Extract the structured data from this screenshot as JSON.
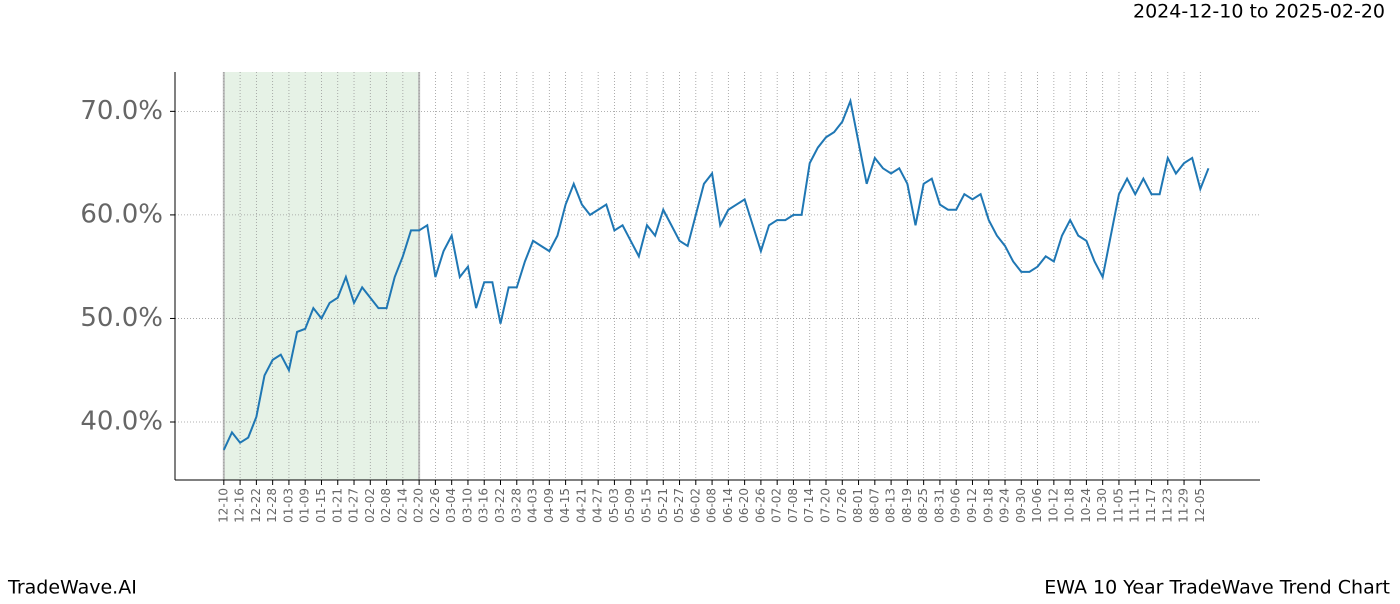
{
  "header": "2024-12-10 to 2025-02-20",
  "footer_left": "TradeWave.AI",
  "footer_right": "EWA 10 Year TradeWave Trend Chart",
  "chart_data": {
    "type": "line",
    "x": [
      0,
      3,
      6,
      9,
      12,
      15,
      18,
      21,
      24,
      27,
      30,
      33,
      36,
      39,
      42,
      45,
      48,
      51,
      54,
      57,
      60,
      63,
      66,
      69,
      72,
      75,
      78,
      81,
      84,
      87,
      90,
      93,
      96,
      99,
      102,
      105,
      108,
      111,
      114,
      117,
      120,
      123,
      126,
      129,
      132,
      135,
      138,
      141,
      144,
      147,
      150,
      153,
      156,
      159,
      162,
      165,
      168,
      171,
      174,
      177,
      180,
      183,
      186,
      189,
      192,
      195,
      198,
      201,
      204,
      207,
      210,
      213,
      216,
      219,
      222,
      225,
      228,
      231,
      234,
      237,
      240,
      243,
      246,
      249,
      252,
      255,
      258,
      261,
      264,
      267,
      270,
      273,
      276,
      279,
      282,
      285,
      288,
      291,
      294,
      297,
      300,
      303,
      306,
      309,
      312,
      315,
      318,
      321,
      324,
      327,
      330,
      333,
      336,
      339,
      342,
      345,
      348,
      351,
      354,
      357,
      360,
      363
    ],
    "series": [
      {
        "color": "#1f77b4",
        "values": [
          37.3,
          39,
          38,
          38.5,
          40.5,
          44.5,
          46,
          46.5,
          45,
          48.7,
          49,
          51,
          50,
          51.5,
          52,
          54,
          51.5,
          53,
          52,
          51,
          51,
          54,
          56,
          58.5,
          58.5,
          59,
          54,
          56.5,
          58,
          54,
          55,
          51,
          53.5,
          53.5,
          49.5,
          53,
          53,
          55.5,
          57.5,
          57,
          56.5,
          58,
          61,
          63,
          61,
          60,
          60.5,
          61,
          58.5,
          59,
          57.5,
          56,
          59,
          58,
          60.5,
          59,
          57.5,
          57,
          60,
          63,
          64,
          59,
          60.5,
          61,
          61.5,
          59,
          56.5,
          59,
          59.5,
          59.5,
          60,
          60,
          65,
          66.5,
          67.5,
          68,
          69,
          71,
          67,
          63,
          65.5,
          64.5,
          64,
          64.5,
          63,
          59,
          63,
          63.5,
          61,
          60.5,
          60.5,
          62,
          61.5,
          62,
          59.5,
          58,
          57,
          55.5,
          54.5,
          54.5,
          55,
          56,
          55.5,
          58,
          59.5,
          58,
          57.5,
          55.5,
          54,
          58,
          62,
          63.5,
          62,
          63.5,
          62,
          62,
          65.5,
          64,
          65,
          65.5,
          62.5,
          64.5
        ]
      }
    ],
    "shade": {
      "from": 0,
      "to": 72,
      "color": "#e6f2e6"
    },
    "xlim": [
      -18,
      382
    ],
    "xticks": [
      {
        "value": 0,
        "label": "12-10"
      },
      {
        "value": 6,
        "label": "12-16"
      },
      {
        "value": 12,
        "label": "12-22"
      },
      {
        "value": 18,
        "label": "12-28"
      },
      {
        "value": 24,
        "label": "01-03"
      },
      {
        "value": 30,
        "label": "01-09"
      },
      {
        "value": 36,
        "label": "01-15"
      },
      {
        "value": 42,
        "label": "01-21"
      },
      {
        "value": 48,
        "label": "01-27"
      },
      {
        "value": 54,
        "label": "02-02"
      },
      {
        "value": 60,
        "label": "02-08"
      },
      {
        "value": 66,
        "label": "02-14"
      },
      {
        "value": 72,
        "label": "02-20"
      },
      {
        "value": 78,
        "label": "02-26"
      },
      {
        "value": 84,
        "label": "03-04"
      },
      {
        "value": 90,
        "label": "03-10"
      },
      {
        "value": 96,
        "label": "03-16"
      },
      {
        "value": 102,
        "label": "03-22"
      },
      {
        "value": 108,
        "label": "03-28"
      },
      {
        "value": 114,
        "label": "04-03"
      },
      {
        "value": 120,
        "label": "04-09"
      },
      {
        "value": 126,
        "label": "04-15"
      },
      {
        "value": 132,
        "label": "04-21"
      },
      {
        "value": 138,
        "label": "04-27"
      },
      {
        "value": 144,
        "label": "05-03"
      },
      {
        "value": 150,
        "label": "05-09"
      },
      {
        "value": 156,
        "label": "05-15"
      },
      {
        "value": 162,
        "label": "05-21"
      },
      {
        "value": 168,
        "label": "05-27"
      },
      {
        "value": 174,
        "label": "06-02"
      },
      {
        "value": 180,
        "label": "06-08"
      },
      {
        "value": 186,
        "label": "06-14"
      },
      {
        "value": 192,
        "label": "06-20"
      },
      {
        "value": 198,
        "label": "06-26"
      },
      {
        "value": 204,
        "label": "07-02"
      },
      {
        "value": 210,
        "label": "07-08"
      },
      {
        "value": 216,
        "label": "07-14"
      },
      {
        "value": 222,
        "label": "07-20"
      },
      {
        "value": 228,
        "label": "07-26"
      },
      {
        "value": 234,
        "label": "08-01"
      },
      {
        "value": 240,
        "label": "08-07"
      },
      {
        "value": 246,
        "label": "08-13"
      },
      {
        "value": 252,
        "label": "08-19"
      },
      {
        "value": 258,
        "label": "08-25"
      },
      {
        "value": 264,
        "label": "08-31"
      },
      {
        "value": 270,
        "label": "09-06"
      },
      {
        "value": 276,
        "label": "09-12"
      },
      {
        "value": 282,
        "label": "09-18"
      },
      {
        "value": 288,
        "label": "09-24"
      },
      {
        "value": 294,
        "label": "09-30"
      },
      {
        "value": 300,
        "label": "10-06"
      },
      {
        "value": 306,
        "label": "10-12"
      },
      {
        "value": 312,
        "label": "10-18"
      },
      {
        "value": 318,
        "label": "10-24"
      },
      {
        "value": 324,
        "label": "10-30"
      },
      {
        "value": 330,
        "label": "11-05"
      },
      {
        "value": 336,
        "label": "11-11"
      },
      {
        "value": 342,
        "label": "11-17"
      },
      {
        "value": 348,
        "label": "11-23"
      },
      {
        "value": 354,
        "label": "11-29"
      },
      {
        "value": 360,
        "label": "12-05"
      }
    ],
    "ylim": [
      34.4,
      73.8
    ],
    "yticks": [
      {
        "value": 40,
        "label": "40.0%"
      },
      {
        "value": 50,
        "label": "50.0%"
      },
      {
        "value": 60,
        "label": "60.0%"
      },
      {
        "value": 70,
        "label": "70.0%"
      }
    ],
    "grid": true
  }
}
